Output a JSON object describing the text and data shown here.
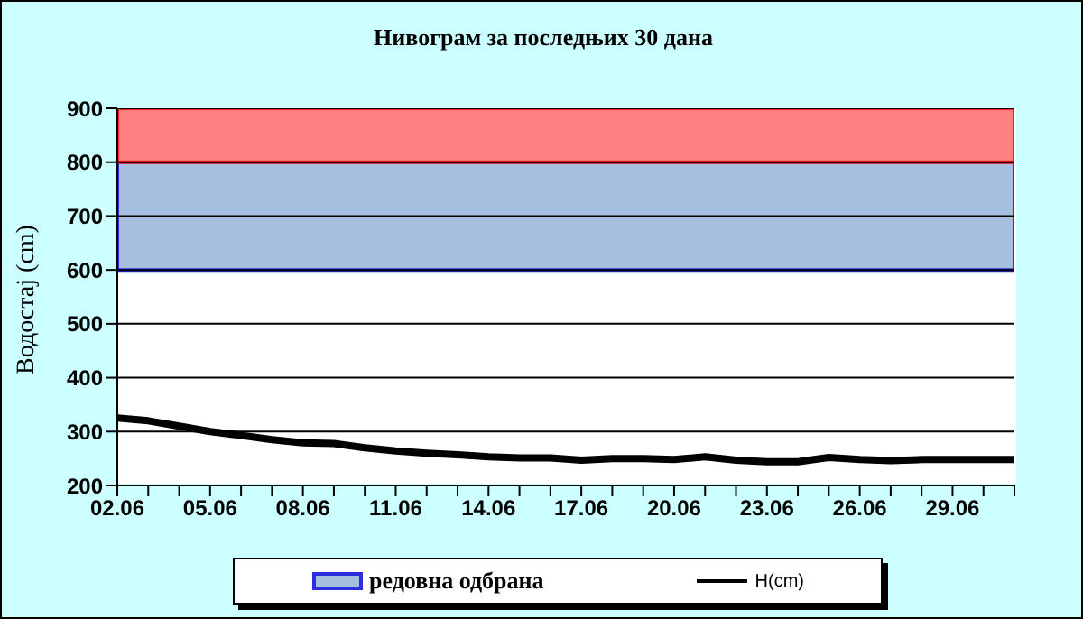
{
  "chart_data": {
    "type": "line",
    "title": "Нивограм за последњих 30 дана",
    "ylabel": "Водостај (cm)",
    "categories": [
      "02.06",
      null,
      null,
      "05.06",
      null,
      null,
      "08.06",
      null,
      null,
      "11.06",
      null,
      null,
      "14.06",
      null,
      null,
      "17.06",
      null,
      null,
      "20.06",
      null,
      null,
      "23.06",
      null,
      null,
      "26.06",
      null,
      null,
      "29.06",
      null,
      null
    ],
    "series": [
      {
        "name": "H(cm)",
        "color": "#000000",
        "values": [
          325,
          320,
          310,
          300,
          293,
          285,
          279,
          278,
          270,
          264,
          260,
          257,
          253,
          251,
          251,
          247,
          250,
          250,
          248,
          253,
          247,
          244,
          244,
          252,
          248,
          246,
          248,
          248,
          248,
          248
        ]
      }
    ],
    "bands": [
      {
        "axis": "y",
        "from": 600,
        "to": 800,
        "label": "редовна одбрана",
        "color": "#a6bfdf"
      },
      {
        "axis": "y",
        "from": 800,
        "to": 900,
        "color": "#ff8080"
      }
    ],
    "ylim": [
      200,
      900
    ],
    "yticks": [
      200,
      300,
      400,
      500,
      600,
      700,
      800,
      900
    ],
    "grid": "y",
    "legend": "bottom",
    "marker": "none",
    "line_style": "solid"
  }
}
